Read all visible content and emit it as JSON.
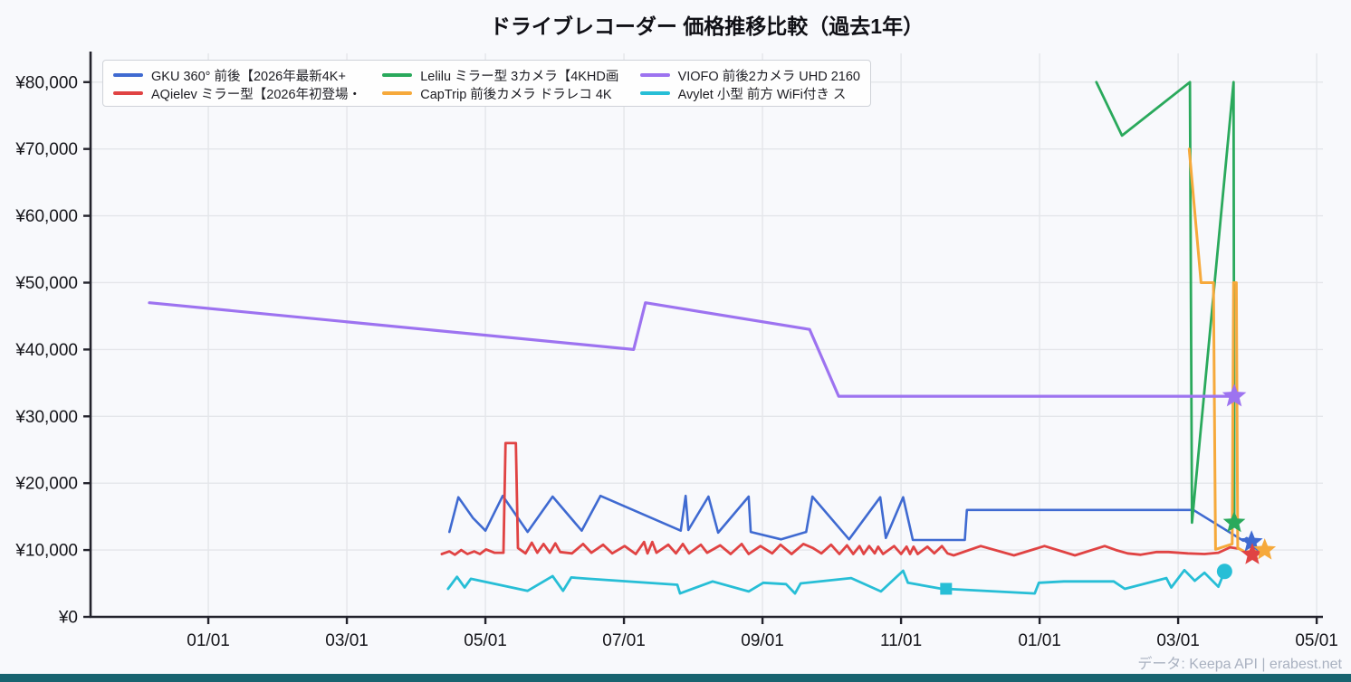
{
  "title": "ドライブレコーダー 価格推移比較（過去1年）",
  "attribution": "データ: Keepa API | erabest.net",
  "page": {
    "background": "#f8f9fc",
    "bottom_bar_color": "#186470",
    "grid_color": "#e4e6ea",
    "axis_color": "#23232c",
    "tick_label_color": "#15151a"
  },
  "chart_data": {
    "type": "line",
    "title": "ドライブレコーダー 価格推移比較（過去1年）",
    "xlabel": "",
    "ylabel": "",
    "x_unit": "months_since_first_jan_tick",
    "xlim": [
      -1.7,
      16.09
    ],
    "ylim": [
      0,
      84300
    ],
    "grid": true,
    "legend_position": "upper left",
    "x_axis": {
      "tick_months": [
        0,
        2,
        4,
        6,
        8,
        10,
        12,
        14,
        16
      ],
      "tick_labels": [
        "01/01",
        "03/01",
        "05/01",
        "07/01",
        "09/01",
        "11/01",
        "01/01",
        "03/01",
        "05/01"
      ]
    },
    "y_axis": {
      "tick_values": [
        0,
        10000,
        20000,
        30000,
        40000,
        50000,
        60000,
        70000,
        80000
      ],
      "tick_labels": [
        "¥0",
        "¥10,000",
        "¥20,000",
        "¥30,000",
        "¥40,000",
        "¥50,000",
        "¥60,000",
        "¥70,000",
        "¥80,000"
      ]
    },
    "series": [
      {
        "name": "GKU 360° 前後【2026年最新4K+",
        "color": "#3f6ad1",
        "width": 2.6,
        "end_marker": "star",
        "points": [
          [
            3.48,
            12700
          ],
          [
            3.61,
            17900
          ],
          [
            3.82,
            14800
          ],
          [
            4.0,
            12900
          ],
          [
            4.25,
            18100
          ],
          [
            4.61,
            12700
          ],
          [
            4.97,
            18000
          ],
          [
            5.39,
            12900
          ],
          [
            5.66,
            18100
          ],
          [
            6.82,
            12900
          ],
          [
            6.89,
            18100
          ],
          [
            6.93,
            13000
          ],
          [
            7.22,
            18000
          ],
          [
            7.36,
            12600
          ],
          [
            7.8,
            18000
          ],
          [
            7.83,
            12700
          ],
          [
            8.27,
            11600
          ],
          [
            8.63,
            12700
          ],
          [
            8.72,
            18000
          ],
          [
            9.25,
            11600
          ],
          [
            9.7,
            17900
          ],
          [
            9.78,
            11800
          ],
          [
            10.03,
            17900
          ],
          [
            10.17,
            11500
          ],
          [
            10.92,
            11500
          ],
          [
            10.95,
            16000
          ],
          [
            14.22,
            16000
          ],
          [
            14.94,
            11400
          ],
          [
            14.99,
            11800
          ],
          [
            15.06,
            11200
          ]
        ]
      },
      {
        "name": "AQielev ミラー型【2026年初登場・",
        "color": "#e04343",
        "width": 2.8,
        "end_marker": "star",
        "points": [
          [
            3.37,
            9400
          ],
          [
            3.48,
            9800
          ],
          [
            3.56,
            9300
          ],
          [
            3.65,
            10000
          ],
          [
            3.74,
            9400
          ],
          [
            3.84,
            9800
          ],
          [
            3.92,
            9400
          ],
          [
            4.01,
            10100
          ],
          [
            4.13,
            9600
          ],
          [
            4.26,
            9600
          ],
          [
            4.29,
            26000
          ],
          [
            4.44,
            26000
          ],
          [
            4.47,
            10300
          ],
          [
            4.58,
            9500
          ],
          [
            4.67,
            11100
          ],
          [
            4.75,
            9600
          ],
          [
            4.84,
            10900
          ],
          [
            4.93,
            9600
          ],
          [
            5.01,
            11000
          ],
          [
            5.08,
            9700
          ],
          [
            5.25,
            9500
          ],
          [
            5.41,
            10900
          ],
          [
            5.53,
            9600
          ],
          [
            5.7,
            10800
          ],
          [
            5.83,
            9500
          ],
          [
            6.01,
            10600
          ],
          [
            6.17,
            9400
          ],
          [
            6.29,
            11200
          ],
          [
            6.34,
            9500
          ],
          [
            6.41,
            11200
          ],
          [
            6.47,
            9600
          ],
          [
            6.64,
            10800
          ],
          [
            6.75,
            9500
          ],
          [
            6.85,
            10900
          ],
          [
            6.94,
            9500
          ],
          [
            7.11,
            10800
          ],
          [
            7.2,
            9600
          ],
          [
            7.39,
            10700
          ],
          [
            7.54,
            9400
          ],
          [
            7.7,
            10900
          ],
          [
            7.8,
            9400
          ],
          [
            7.97,
            10600
          ],
          [
            8.14,
            9500
          ],
          [
            8.26,
            10800
          ],
          [
            8.42,
            9400
          ],
          [
            8.59,
            10900
          ],
          [
            8.73,
            10300
          ],
          [
            8.85,
            9500
          ],
          [
            8.99,
            10800
          ],
          [
            9.11,
            9400
          ],
          [
            9.22,
            10700
          ],
          [
            9.31,
            9400
          ],
          [
            9.4,
            10600
          ],
          [
            9.46,
            9400
          ],
          [
            9.54,
            10600
          ],
          [
            9.62,
            9500
          ],
          [
            9.67,
            10500
          ],
          [
            9.74,
            9400
          ],
          [
            9.9,
            10600
          ],
          [
            10.0,
            9400
          ],
          [
            10.08,
            10500
          ],
          [
            10.13,
            9400
          ],
          [
            10.18,
            10500
          ],
          [
            10.24,
            9400
          ],
          [
            10.38,
            10500
          ],
          [
            10.48,
            9500
          ],
          [
            10.59,
            10600
          ],
          [
            10.67,
            9500
          ],
          [
            10.76,
            9200
          ],
          [
            11.15,
            10600
          ],
          [
            11.63,
            9200
          ],
          [
            12.07,
            10600
          ],
          [
            12.51,
            9200
          ],
          [
            12.94,
            10600
          ],
          [
            13.1,
            10000
          ],
          [
            13.27,
            9500
          ],
          [
            13.46,
            9300
          ],
          [
            13.69,
            9700
          ],
          [
            13.86,
            9700
          ],
          [
            14.14,
            9500
          ],
          [
            14.38,
            9400
          ],
          [
            14.58,
            9600
          ],
          [
            14.75,
            10400
          ],
          [
            14.88,
            10200
          ],
          [
            14.99,
            9500
          ],
          [
            15.07,
            9300
          ]
        ]
      },
      {
        "name": "Lelilu ミラー型 3カメラ【4KHD画",
        "color": "#2aa95c",
        "width": 2.8,
        "end_marker": "star",
        "points": [
          [
            12.82,
            80000
          ],
          [
            13.19,
            72000
          ],
          [
            14.17,
            80000
          ],
          [
            14.2,
            14100
          ],
          [
            14.8,
            80000
          ],
          [
            14.81,
            14100
          ]
        ]
      },
      {
        "name": "CapTrip 前後カメラ ドラレコ 4K",
        "color": "#f6a93b",
        "width": 3,
        "end_marker": "star",
        "points": [
          [
            14.16,
            70000
          ],
          [
            14.33,
            50000
          ],
          [
            14.51,
            50000
          ],
          [
            14.54,
            10100
          ],
          [
            14.78,
            10900
          ],
          [
            14.8,
            50000
          ],
          [
            14.84,
            50000
          ],
          [
            14.86,
            10300
          ],
          [
            14.97,
            9700
          ],
          [
            15.16,
            9900
          ],
          [
            15.25,
            10000
          ]
        ]
      },
      {
        "name": "VIOFO 前後2カメラ UHD 2160",
        "color": "#9d73f0",
        "width": 3.2,
        "end_marker": "star",
        "points": [
          [
            -0.85,
            47000
          ],
          [
            6.14,
            40000
          ],
          [
            6.31,
            47000
          ],
          [
            8.68,
            43000
          ],
          [
            9.1,
            33000
          ],
          [
            14.81,
            33000
          ]
        ]
      },
      {
        "name": "Avylet 小型 前方 WiFi付き ス",
        "color": "#27bed6",
        "width": 2.8,
        "end_marker": "circle",
        "extra_markers": [
          {
            "type": "square",
            "point": [
              10.65,
              4200
            ]
          }
        ],
        "points": [
          [
            3.46,
            4200
          ],
          [
            3.59,
            6000
          ],
          [
            3.7,
            4400
          ],
          [
            3.79,
            5700
          ],
          [
            4.61,
            3900
          ],
          [
            4.97,
            6100
          ],
          [
            5.12,
            3900
          ],
          [
            5.24,
            5900
          ],
          [
            5.49,
            5700
          ],
          [
            6.77,
            4800
          ],
          [
            6.81,
            3500
          ],
          [
            7.28,
            5300
          ],
          [
            7.8,
            3800
          ],
          [
            8.01,
            5100
          ],
          [
            8.34,
            4900
          ],
          [
            8.47,
            3500
          ],
          [
            8.55,
            5000
          ],
          [
            9.28,
            5800
          ],
          [
            9.71,
            3800
          ],
          [
            10.03,
            6900
          ],
          [
            10.1,
            5100
          ],
          [
            10.59,
            4200
          ],
          [
            10.65,
            4200
          ],
          [
            11.93,
            3500
          ],
          [
            11.99,
            5100
          ],
          [
            12.35,
            5300
          ],
          [
            13.07,
            5300
          ],
          [
            13.23,
            4200
          ],
          [
            13.83,
            5800
          ],
          [
            13.9,
            4400
          ],
          [
            14.09,
            7000
          ],
          [
            14.24,
            5400
          ],
          [
            14.38,
            6600
          ],
          [
            14.58,
            4500
          ],
          [
            14.67,
            6800
          ]
        ]
      }
    ]
  }
}
